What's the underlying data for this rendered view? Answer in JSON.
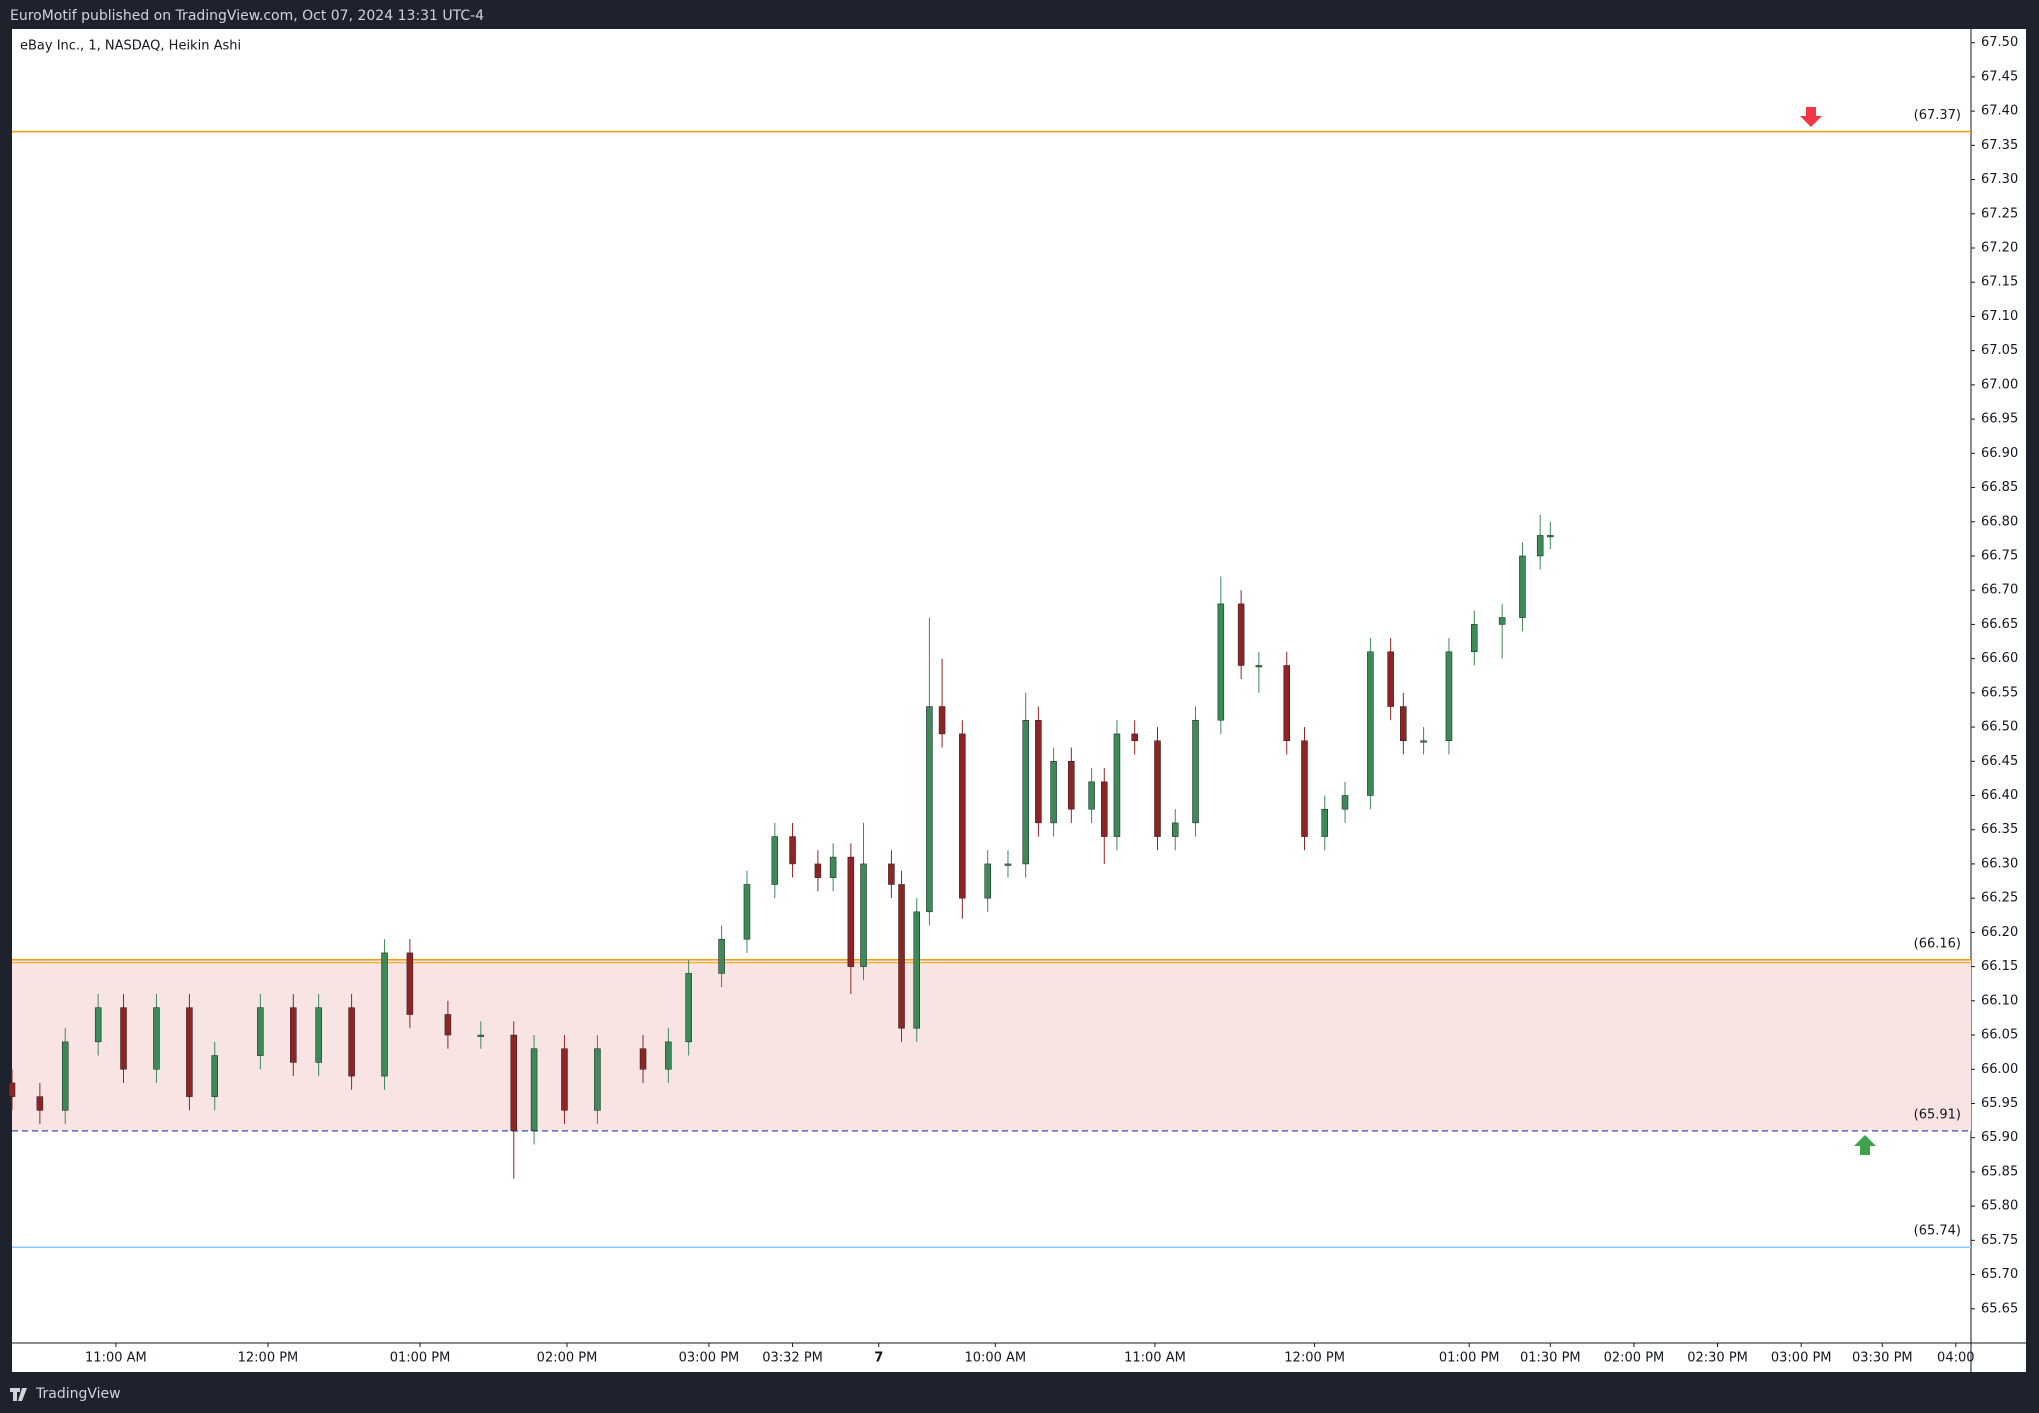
{
  "header": {
    "text": "EuroMotif published on TradingView.com, Oct 07, 2024 13:31 UTC-4"
  },
  "footer": {
    "text": "TradingView"
  },
  "chart_data": {
    "type": "candlestick",
    "title": "eBay Inc., 1, NASDAQ, Heikin Ashi",
    "up_color": "#3b8a58",
    "down_color": "#8f2424",
    "x": [
      0,
      11,
      21,
      34,
      44,
      57,
      70,
      80,
      98,
      111,
      121,
      134,
      147,
      157,
      172,
      185,
      198,
      206,
      218,
      231,
      249,
      259,
      267,
      280,
      290,
      301,
      308,
      318,
      324,
      331,
      336,
      347,
      351,
      357,
      362,
      367,
      375,
      385,
      393,
      400,
      405,
      411,
      418,
      426,
      431,
      436,
      443,
      452,
      459,
      467,
      477,
      485,
      492,
      503,
      510,
      518,
      526,
      536,
      544,
      549,
      557,
      567,
      577,
      588,
      596,
      603,
      607
    ],
    "open": [
      65.98,
      65.96,
      65.94,
      66.04,
      66.09,
      66.0,
      66.09,
      65.96,
      66.02,
      66.09,
      66.01,
      66.09,
      65.99,
      66.17,
      66.08,
      66.05,
      66.05,
      65.91,
      66.03,
      65.94,
      66.03,
      66.0,
      66.04,
      66.14,
      66.19,
      66.27,
      66.34,
      66.3,
      66.28,
      66.31,
      66.15,
      66.3,
      66.27,
      66.06,
      66.23,
      66.53,
      66.49,
      66.25,
      66.3,
      66.3,
      66.51,
      66.36,
      66.45,
      66.38,
      66.42,
      66.34,
      66.49,
      66.48,
      66.34,
      66.36,
      66.51,
      66.68,
      66.59,
      66.59,
      66.48,
      66.34,
      66.38,
      66.4,
      66.61,
      66.53,
      66.48,
      66.48,
      66.61,
      66.65,
      66.66,
      66.75,
      66.78
    ],
    "high": [
      66.0,
      65.98,
      66.06,
      66.11,
      66.11,
      66.11,
      66.11,
      66.04,
      66.11,
      66.11,
      66.11,
      66.11,
      66.19,
      66.19,
      66.1,
      66.07,
      66.07,
      66.05,
      66.05,
      66.05,
      66.05,
      66.06,
      66.16,
      66.21,
      66.29,
      66.36,
      66.36,
      66.32,
      66.33,
      66.33,
      66.36,
      66.32,
      66.29,
      66.25,
      66.66,
      66.6,
      66.51,
      66.32,
      66.32,
      66.55,
      66.53,
      66.47,
      66.47,
      66.44,
      66.44,
      66.51,
      66.51,
      66.5,
      66.38,
      66.53,
      66.72,
      66.7,
      66.61,
      66.61,
      66.5,
      66.4,
      66.42,
      66.63,
      66.63,
      66.55,
      66.5,
      66.63,
      66.67,
      66.68,
      66.77,
      66.81,
      66.8
    ],
    "low": [
      65.94,
      65.92,
      65.92,
      66.02,
      65.98,
      65.98,
      65.94,
      65.94,
      66.0,
      65.99,
      65.99,
      65.97,
      65.97,
      66.06,
      66.03,
      66.03,
      65.84,
      65.89,
      65.92,
      65.92,
      65.98,
      65.98,
      66.02,
      66.12,
      66.17,
      66.25,
      66.28,
      66.26,
      66.26,
      66.11,
      66.13,
      66.25,
      66.04,
      66.04,
      66.21,
      66.47,
      66.22,
      66.23,
      66.28,
      66.28,
      66.34,
      66.34,
      66.36,
      66.36,
      66.3,
      66.32,
      66.46,
      66.32,
      66.32,
      66.34,
      66.49,
      66.57,
      66.55,
      66.46,
      66.32,
      66.32,
      66.36,
      66.38,
      66.51,
      66.46,
      66.46,
      66.46,
      66.59,
      66.6,
      66.64,
      66.73,
      66.76
    ],
    "close": [
      65.96,
      65.94,
      66.04,
      66.09,
      66.0,
      66.09,
      65.96,
      66.02,
      66.09,
      66.01,
      66.09,
      65.99,
      66.17,
      66.08,
      66.05,
      66.05,
      65.91,
      66.03,
      65.94,
      66.03,
      66.0,
      66.04,
      66.14,
      66.19,
      66.27,
      66.34,
      66.3,
      66.28,
      66.31,
      66.15,
      66.3,
      66.27,
      66.06,
      66.23,
      66.53,
      66.49,
      66.25,
      66.3,
      66.3,
      66.51,
      66.36,
      66.45,
      66.38,
      66.42,
      66.34,
      66.49,
      66.48,
      66.34,
      66.36,
      66.51,
      66.68,
      66.59,
      66.59,
      66.48,
      66.34,
      66.38,
      66.4,
      66.61,
      66.53,
      66.48,
      66.48,
      66.61,
      66.65,
      66.66,
      66.75,
      66.78,
      66.78
    ],
    "xlim": [
      0,
      773
    ],
    "xticks": [
      {
        "value": 41,
        "label": "11:00 AM"
      },
      {
        "value": 101,
        "label": "12:00 PM"
      },
      {
        "value": 161,
        "label": "01:00 PM"
      },
      {
        "value": 219,
        "label": "02:00 PM"
      },
      {
        "value": 275,
        "label": "03:00 PM"
      },
      {
        "value": 308,
        "label": "03:32 PM"
      },
      {
        "value": 342,
        "label": "7"
      },
      {
        "value": 388,
        "label": "10:00 AM"
      },
      {
        "value": 451,
        "label": "11:00 AM"
      },
      {
        "value": 514,
        "label": "12:00 PM"
      },
      {
        "value": 575,
        "label": "01:00 PM"
      },
      {
        "value": 607,
        "label": "01:30 PM"
      },
      {
        "value": 640,
        "label": "02:00 PM"
      },
      {
        "value": 673,
        "label": "02:30 PM"
      },
      {
        "value": 706,
        "label": "03:00 PM"
      },
      {
        "value": 738,
        "label": "03:30 PM"
      },
      {
        "value": 767,
        "label": "04:00"
      }
    ],
    "ylim": [
      65.6,
      67.52
    ],
    "yticks": [
      65.65,
      {
        "value": 65.7,
        "label": "65.70"
      },
      65.75,
      {
        "value": 65.8,
        "label": "65.80"
      },
      65.85,
      {
        "value": 65.9,
        "label": "65.90"
      },
      65.95,
      {
        "value": 66,
        "label": "66.00"
      },
      66.05,
      {
        "value": 66.1,
        "label": "66.10"
      },
      66.15,
      {
        "value": 66.2,
        "label": "66.20"
      },
      66.25,
      {
        "value": 66.3,
        "label": "66.30"
      },
      66.35,
      {
        "value": 66.4,
        "label": "66.40"
      },
      66.45,
      {
        "value": 66.5,
        "label": "66.50"
      },
      66.55,
      {
        "value": 66.6,
        "label": "66.60"
      },
      66.65,
      {
        "value": 66.7,
        "label": "66.70"
      },
      66.75,
      {
        "value": 66.8,
        "label": "66.80"
      },
      66.85,
      {
        "value": 66.9,
        "label": "66.90"
      },
      66.95,
      {
        "value": 67,
        "label": "67.00"
      },
      67.05,
      {
        "value": 67.1,
        "label": "67.10"
      },
      67.15,
      {
        "value": 67.2,
        "label": "67.20"
      },
      67.25,
      {
        "value": 67.3,
        "label": "67.30"
      },
      67.35,
      {
        "value": 67.4,
        "label": "67.40"
      },
      67.45,
      {
        "value": 67.5,
        "label": "67.50"
      }
    ],
    "levels": [
      {
        "value": 67.37,
        "label": "(67.37)",
        "color": "#f59e0b"
      },
      {
        "value": 66.16,
        "label": "(66.16)",
        "color": "#f59e0b"
      },
      {
        "value": 65.91,
        "label": "(65.91)",
        "color": "#5c6bc0"
      },
      {
        "value": 65.74,
        "label": "(65.74)",
        "color": "#90caf9"
      }
    ],
    "zone_color": "#f9e4e4"
  }
}
